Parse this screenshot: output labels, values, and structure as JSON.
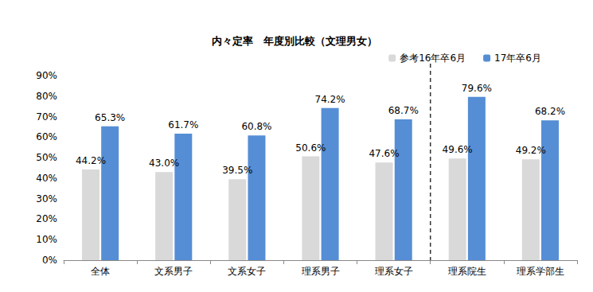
{
  "chart_data": {
    "type": "bar",
    "title": "内々定率　年度別比較（文理男女）",
    "categories": [
      "全体",
      "文系男子",
      "文系女子",
      "理系男子",
      "理系女子",
      "理系院生",
      "理系学部生"
    ],
    "series": [
      {
        "name": "参考16年卒6月",
        "color": "#d9d9d9",
        "values": [
          44.2,
          43.0,
          39.5,
          50.6,
          47.6,
          49.6,
          49.2
        ],
        "value_labels": [
          "44.2%",
          "43.0%",
          "39.5%",
          "50.6%",
          "47.6%",
          "49.6%",
          "49.2%"
        ]
      },
      {
        "name": "17年卒6月",
        "color": "#558ed5",
        "values": [
          65.3,
          61.7,
          60.8,
          74.2,
          68.7,
          79.6,
          68.2
        ],
        "value_labels": [
          "65.3%",
          "61.7%",
          "60.8%",
          "74.2%",
          "68.7%",
          "79.6%",
          "68.2%"
        ]
      }
    ],
    "ylim": [
      0,
      90
    ],
    "yticks": [
      {
        "value": 0,
        "label": "0%"
      },
      {
        "value": 10,
        "label": "10%"
      },
      {
        "value": 20,
        "label": "20%"
      },
      {
        "value": 30,
        "label": "30%"
      },
      {
        "value": 40,
        "label": "40%"
      },
      {
        "value": 50,
        "label": "50%"
      },
      {
        "value": 60,
        "label": "60%"
      },
      {
        "value": 70,
        "label": "70%"
      },
      {
        "value": 80,
        "label": "80%"
      },
      {
        "value": 90,
        "label": "90%"
      }
    ],
    "grid": false,
    "legend": "upper right",
    "data_labels": true
  }
}
